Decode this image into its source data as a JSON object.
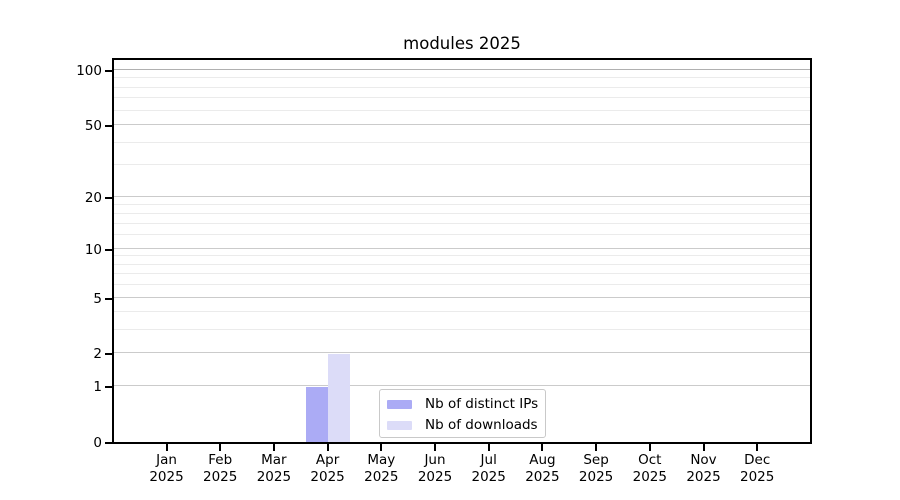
{
  "chart_data": {
    "type": "bar",
    "title": "modules 2025",
    "categories": [
      "Jan 2025",
      "Feb 2025",
      "Mar 2025",
      "Apr 2025",
      "May 2025",
      "Jun 2025",
      "Jul 2025",
      "Aug 2025",
      "Sep 2025",
      "Oct 2025",
      "Nov 2025",
      "Dec 2025"
    ],
    "series": [
      {
        "name": "Nb of distinct IPs",
        "color": "#ababf5",
        "values": [
          0,
          0,
          0,
          1,
          0,
          0,
          0,
          0,
          0,
          0,
          0,
          0
        ]
      },
      {
        "name": "Nb of downloads",
        "color": "#dcdcf8",
        "values": [
          0,
          0,
          0,
          2,
          0,
          0,
          0,
          0,
          0,
          0,
          0,
          0
        ]
      }
    ],
    "xlabel": "",
    "ylabel": "",
    "y_axis": {
      "scale": "log(1+v)",
      "tick_values": [
        0,
        1,
        2,
        5,
        10,
        20,
        50,
        100
      ],
      "minor_gridline_values": [
        3,
        4,
        6,
        7,
        8,
        9,
        12,
        14,
        16,
        18,
        30,
        40,
        60,
        70,
        80,
        90
      ],
      "range": [
        0,
        115
      ]
    },
    "grid": {
      "major": true,
      "minor": true
    },
    "legend": {
      "position": "lower center inside"
    }
  }
}
